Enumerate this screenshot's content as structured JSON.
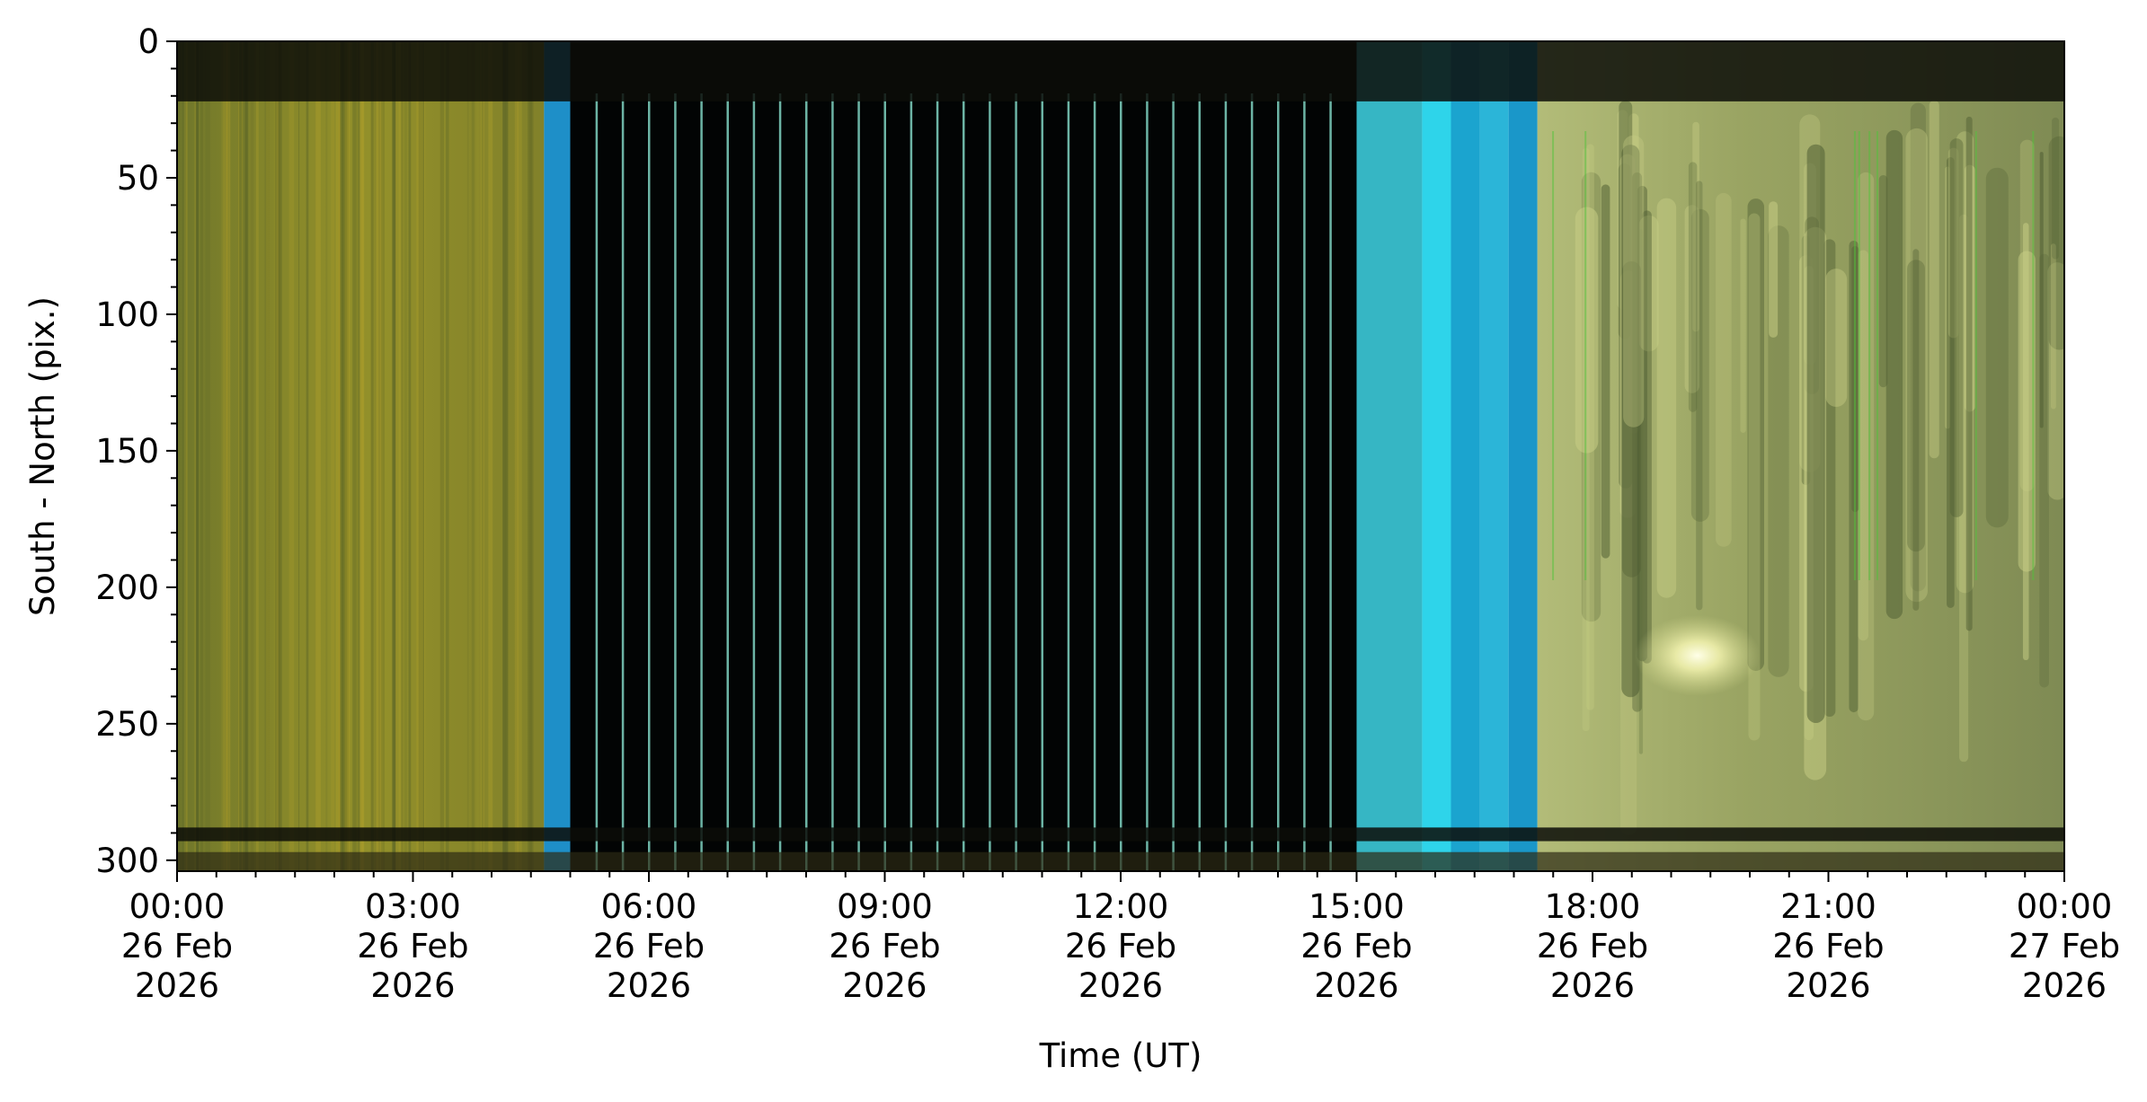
{
  "chart_data": {
    "type": "heatmap",
    "title": "",
    "xlabel": "Time (UT)",
    "ylabel": "South - North (pix.)",
    "xlim": [
      "2026-02-26T00:00",
      "2026-02-27T00:00"
    ],
    "ylim": [
      304,
      0
    ],
    "y_ticks": [
      0,
      50,
      100,
      150,
      200,
      250,
      300
    ],
    "y_minor_step": 10,
    "x_minor_step_hours": 0.5,
    "x_ticks": [
      {
        "time": "2026-02-26T00:00",
        "lines": [
          "00:00",
          "26 Feb",
          "2026"
        ]
      },
      {
        "time": "2026-02-26T03:00",
        "lines": [
          "03:00",
          "26 Feb",
          "2026"
        ]
      },
      {
        "time": "2026-02-26T06:00",
        "lines": [
          "06:00",
          "26 Feb",
          "2026"
        ]
      },
      {
        "time": "2026-02-26T09:00",
        "lines": [
          "09:00",
          "26 Feb",
          "2026"
        ]
      },
      {
        "time": "2026-02-26T12:00",
        "lines": [
          "12:00",
          "26 Feb",
          "2026"
        ]
      },
      {
        "time": "2026-02-26T15:00",
        "lines": [
          "15:00",
          "26 Feb",
          "2026"
        ]
      },
      {
        "time": "2026-02-26T18:00",
        "lines": [
          "18:00",
          "26 Feb",
          "2026"
        ]
      },
      {
        "time": "2026-02-26T21:00",
        "lines": [
          "21:00",
          "26 Feb",
          "2026"
        ]
      },
      {
        "time": "2026-02-27T00:00",
        "lines": [
          "00:00",
          "27 Feb",
          "2026"
        ]
      }
    ],
    "grid": false,
    "legend": "none",
    "segments": [
      {
        "start": "2026-02-26T00:00",
        "end": "2026-02-26T04:40",
        "color": "#8a8a2c"
      },
      {
        "start": "2026-02-26T04:40",
        "end": "2026-02-26T05:00",
        "color": "#1e8fc8"
      },
      {
        "start": "2026-02-26T05:00",
        "end": "2026-02-26T15:00",
        "color": "#020404"
      },
      {
        "start": "2026-02-26T15:00",
        "end": "2026-02-26T15:50",
        "color": "#36b6c4"
      },
      {
        "start": "2026-02-26T15:50",
        "end": "2026-02-26T16:12",
        "color": "#2ed4ea"
      },
      {
        "start": "2026-02-26T16:12",
        "end": "2026-02-26T16:34",
        "color": "#1ba4cf"
      },
      {
        "start": "2026-02-26T16:34",
        "end": "2026-02-26T16:56",
        "color": "#2bb5d8"
      },
      {
        "start": "2026-02-26T16:56",
        "end": "2026-02-26T17:18",
        "color": "#1a97c9"
      },
      {
        "start": "2026-02-26T17:18",
        "end": "2026-02-27T00:00",
        "color": "#a7b16e"
      }
    ],
    "flash_lines": {
      "start": "2026-02-26T05:20",
      "end": "2026-02-26T14:40",
      "step_minutes": 20,
      "color": "#7fd3c2"
    },
    "dark_bands_y": [
      [
        0,
        22
      ],
      [
        288,
        293
      ]
    ],
    "bright_spot": {
      "time": "2026-02-26T19:20",
      "y": 225,
      "color": "#ffffe0"
    }
  }
}
